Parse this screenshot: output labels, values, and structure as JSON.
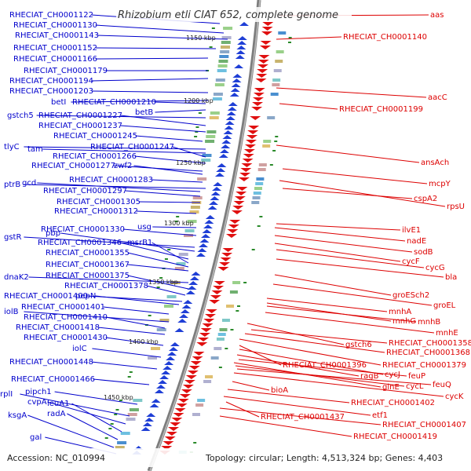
{
  "title": "Rhizobium etli CIAT 652, complete genome",
  "accession_label": "Accession: NC_010994",
  "summary_label": "Topology: circular; Length: 4,513,324 bp; Genes: 4,403",
  "colors": {
    "left_labels": "#0000cc",
    "right_labels": "#dd0000",
    "backbone": "#888888",
    "tick": "#2a8a2a"
  },
  "scale_ticks": [
    "1150 kbp",
    "1200 kbp",
    "1250 kbp",
    "1300 kbp",
    "1350 kbp",
    "1400 kbp",
    "1450 kbp"
  ],
  "left_labels": [
    "RHECIAT_CH0001122",
    "RHECIAT_CH0001130",
    "RHECIAT_CH0001143",
    "RHECIAT_CH0001152",
    "RHECIAT_CH0001166",
    "RHECIAT_CH0001179",
    "RHECIAT_CH0001194",
    "RHECIAT_CH0001203",
    "betI",
    "RHECIAT_CH0001210",
    "betB",
    "gstch5",
    "RHECIAT_CH0001227",
    "RHECIAT_CH0001237",
    "RHECIAT_CH0001245",
    "tlyC",
    "tam",
    "RHECIAT_CH0001247",
    "RHECIAT_CH0001266",
    "RHECIAT_CH0001277",
    "zwf2",
    "RHECIAT_CH0001283",
    "ptrB",
    "gcd",
    "RHECIAT_CH0001297",
    "RHECIAT_CH0001305",
    "RHECIAT_CH0001312",
    "usg",
    "RHECIAT_CH0001330",
    "gstR",
    "pbp",
    "RHECIAT_CH0001346",
    "msrB1",
    "RHECIAT_CH0001355",
    "RHECIAT_CH0001367",
    "dnaK2",
    "RHECIAT_CH0001375",
    "RHECIAT_CH0001378",
    "RHECIAT_CH0001400",
    "pepN",
    "RHECIAT_CH0001401",
    "iolB",
    "RHECIAT_CH0001410",
    "RHECIAT_CH0001418",
    "RHECIAT_CH0001430",
    "iolC",
    "RHECIAT_CH0001448",
    "RHECIAT_CH0001466",
    "pipch1",
    "rplI",
    "cvpA",
    "leuA1",
    "radA",
    "ksgA",
    "gal"
  ],
  "right_labels": [
    "aas",
    "RHECIAT_CH0001140",
    "aacC",
    "RHECIAT_CH0001199",
    "ansAch",
    "mcpY",
    "cspA2",
    "rpsU",
    "ilvE1",
    "nadE",
    "sodB",
    "cycF",
    "cycG",
    "bla",
    "groESch2",
    "groEL",
    "mnhA",
    "mnhG",
    "mnhB",
    "mnhE",
    "gstch6",
    "RHECIAT_CH0001358",
    "RHECIAT_CH0001368",
    "RHECIAT_CH0001396",
    "RHECIAT_CH0001379",
    "cycJ",
    "ragB",
    "feuP",
    "glnE",
    "cycL",
    "feuQ",
    "cycK",
    "bioA",
    "RHECIAT_CH0001402",
    "etf1",
    "RHECIAT_CH0001437",
    "RHECIAT_CH0001407",
    "RHECIAT_CH0001419"
  ]
}
